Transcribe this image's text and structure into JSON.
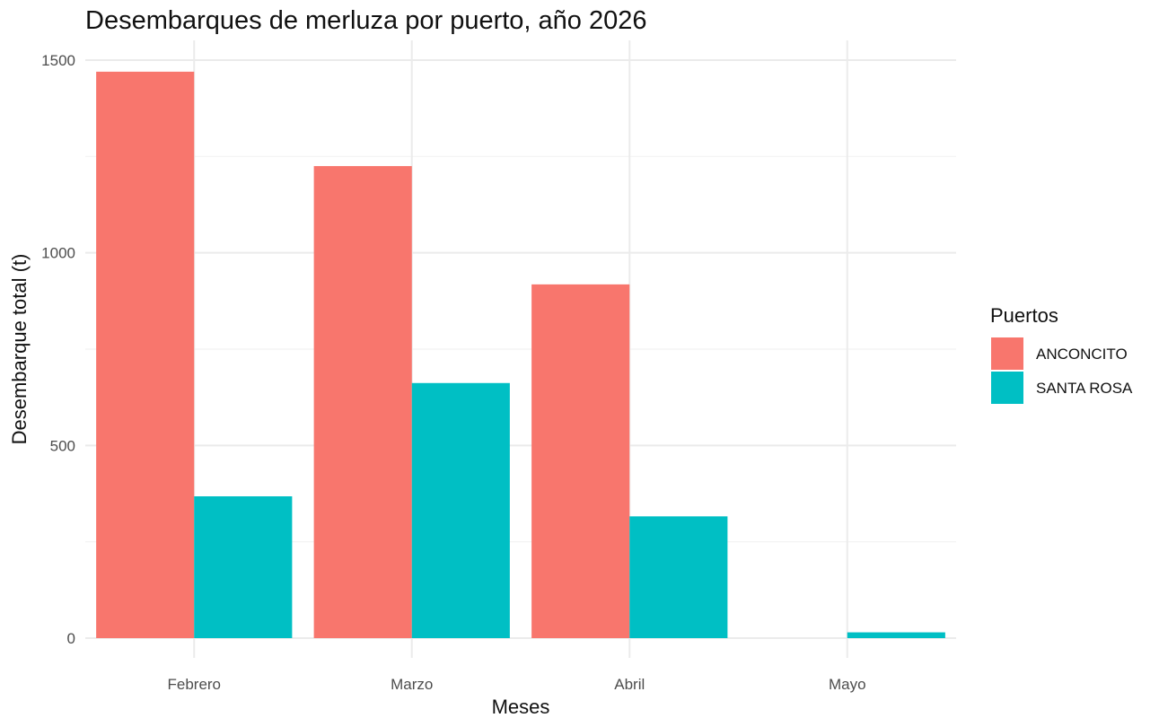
{
  "chart_data": {
    "type": "bar",
    "title": "Desembarques de merluza por puerto, año 2026",
    "xlabel": "Meses",
    "ylabel": "Desembarque total (t)",
    "categories": [
      "Febrero",
      "Marzo",
      "Abril",
      "Mayo"
    ],
    "series": [
      {
        "name": "ANCONCITO",
        "color": "#F8766D",
        "values": [
          1470,
          1225,
          918,
          0
        ]
      },
      {
        "name": "SANTA ROSA",
        "color": "#00BFC4",
        "values": [
          368,
          662,
          316,
          15
        ]
      }
    ],
    "ylim": [
      0,
      1500
    ],
    "yticks": [
      0,
      500,
      1000,
      1500
    ],
    "ytick_labels": [
      "0",
      "500",
      "1000",
      "1500"
    ],
    "grid": true,
    "legend": {
      "title": "Puertos",
      "position": "right"
    }
  }
}
